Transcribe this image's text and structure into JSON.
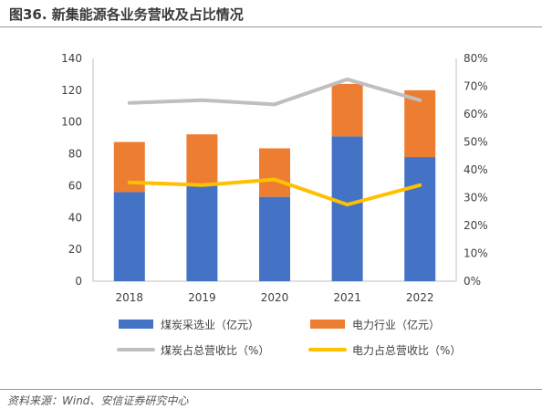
{
  "figure": {
    "title": "图36. 新集能源各业务营收及占比情况",
    "source": "资料来源：Wind、安信证券研究中心"
  },
  "chart_data": {
    "type": "bar",
    "stacked": true,
    "categories": [
      "2018",
      "2019",
      "2020",
      "2021",
      "2022"
    ],
    "y_left": {
      "lim": [
        0,
        140
      ],
      "ticks": [
        0,
        20,
        40,
        60,
        80,
        100,
        120,
        140
      ]
    },
    "y_right": {
      "lim": [
        0,
        80
      ],
      "ticks": [
        "0%",
        "10%",
        "20%",
        "30%",
        "40%",
        "50%",
        "60%",
        "70%",
        "80%"
      ]
    },
    "series": [
      {
        "name": "煤炭采选业（亿元）",
        "type": "bar",
        "axis": "left",
        "color": "#4472C4",
        "values": [
          56,
          60,
          53,
          91,
          78
        ]
      },
      {
        "name": "电力行业（亿元）",
        "type": "bar",
        "axis": "left",
        "color": "#ED7D31",
        "values": [
          31.5,
          32.3,
          30.5,
          33,
          42
        ]
      },
      {
        "name": "煤炭占总营收比（%）",
        "type": "line",
        "axis": "right",
        "color": "#BFBFBF",
        "values": [
          64,
          65,
          63.5,
          72.5,
          65
        ]
      },
      {
        "name": "电力占总营收比（%）",
        "type": "line",
        "axis": "right",
        "color": "#FFC000",
        "values": [
          35.5,
          34.5,
          36.5,
          27.5,
          34.5
        ]
      }
    ],
    "legend_position": "bottom",
    "grid": false
  }
}
